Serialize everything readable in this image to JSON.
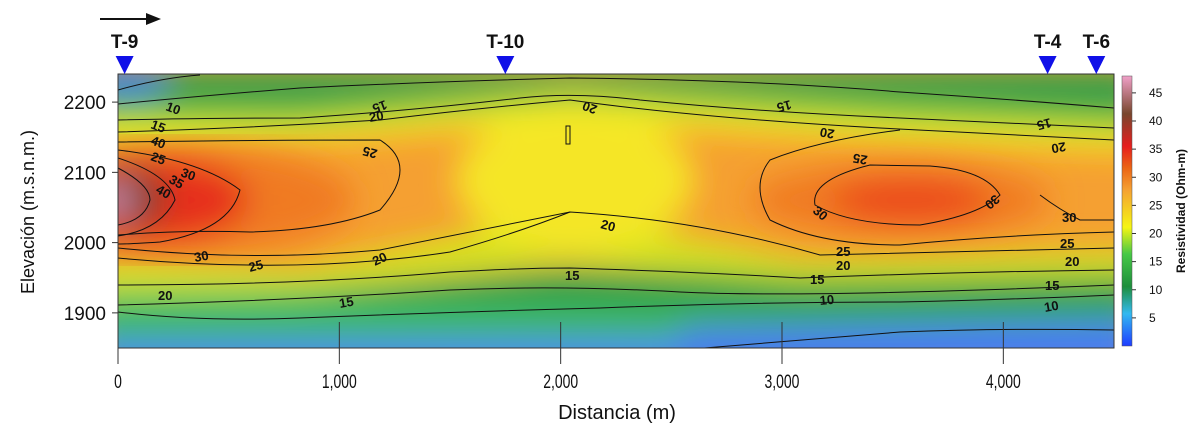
{
  "chart_data": {
    "type": "heatmap",
    "subtype": "filled-contour-section",
    "title": "",
    "xlabel": "Distancia (m)",
    "ylabel": "Elevación (m.s.n.m.)",
    "xlim": [
      0,
      4500
    ],
    "ylim": [
      1850,
      2240
    ],
    "x_ticks": [
      0,
      1000,
      2000,
      3000,
      4000
    ],
    "x_tick_labels": [
      "0",
      "1,000",
      "2,000",
      "3,000",
      "4,000"
    ],
    "y_ticks": [
      1900,
      2000,
      2100,
      2200
    ],
    "y_tick_labels": [
      "1900",
      "2000",
      "2100",
      "2200"
    ],
    "colorbar": {
      "label": "Resistividad (Ohm-m)",
      "range": [
        0,
        48
      ],
      "ticks": [
        5,
        10,
        15,
        20,
        25,
        30,
        35,
        40,
        45
      ],
      "tick_labels": [
        "5",
        "10",
        "15",
        "20",
        "25",
        "30",
        "35",
        "40",
        "45"
      ],
      "colors": [
        "#1e3cff",
        "#32b9f0",
        "#1e8e3c",
        "#46c846",
        "#f5f514",
        "#f5a032",
        "#eb6414",
        "#e61e1e",
        "#78462d",
        "#f0a0c8"
      ]
    },
    "wells": [
      {
        "name": "T-9",
        "x": 30
      },
      {
        "name": "T-10",
        "x": 1750
      },
      {
        "name": "T-4",
        "x": 4200
      },
      {
        "name": "T-6",
        "x": 4420
      }
    ],
    "contour_levels": [
      10,
      15,
      20,
      25,
      30,
      35,
      40
    ],
    "contour_labels": [
      "10",
      "15",
      "20",
      "25",
      "30",
      "35",
      "40"
    ],
    "grid": false,
    "direction_arrow": true
  }
}
